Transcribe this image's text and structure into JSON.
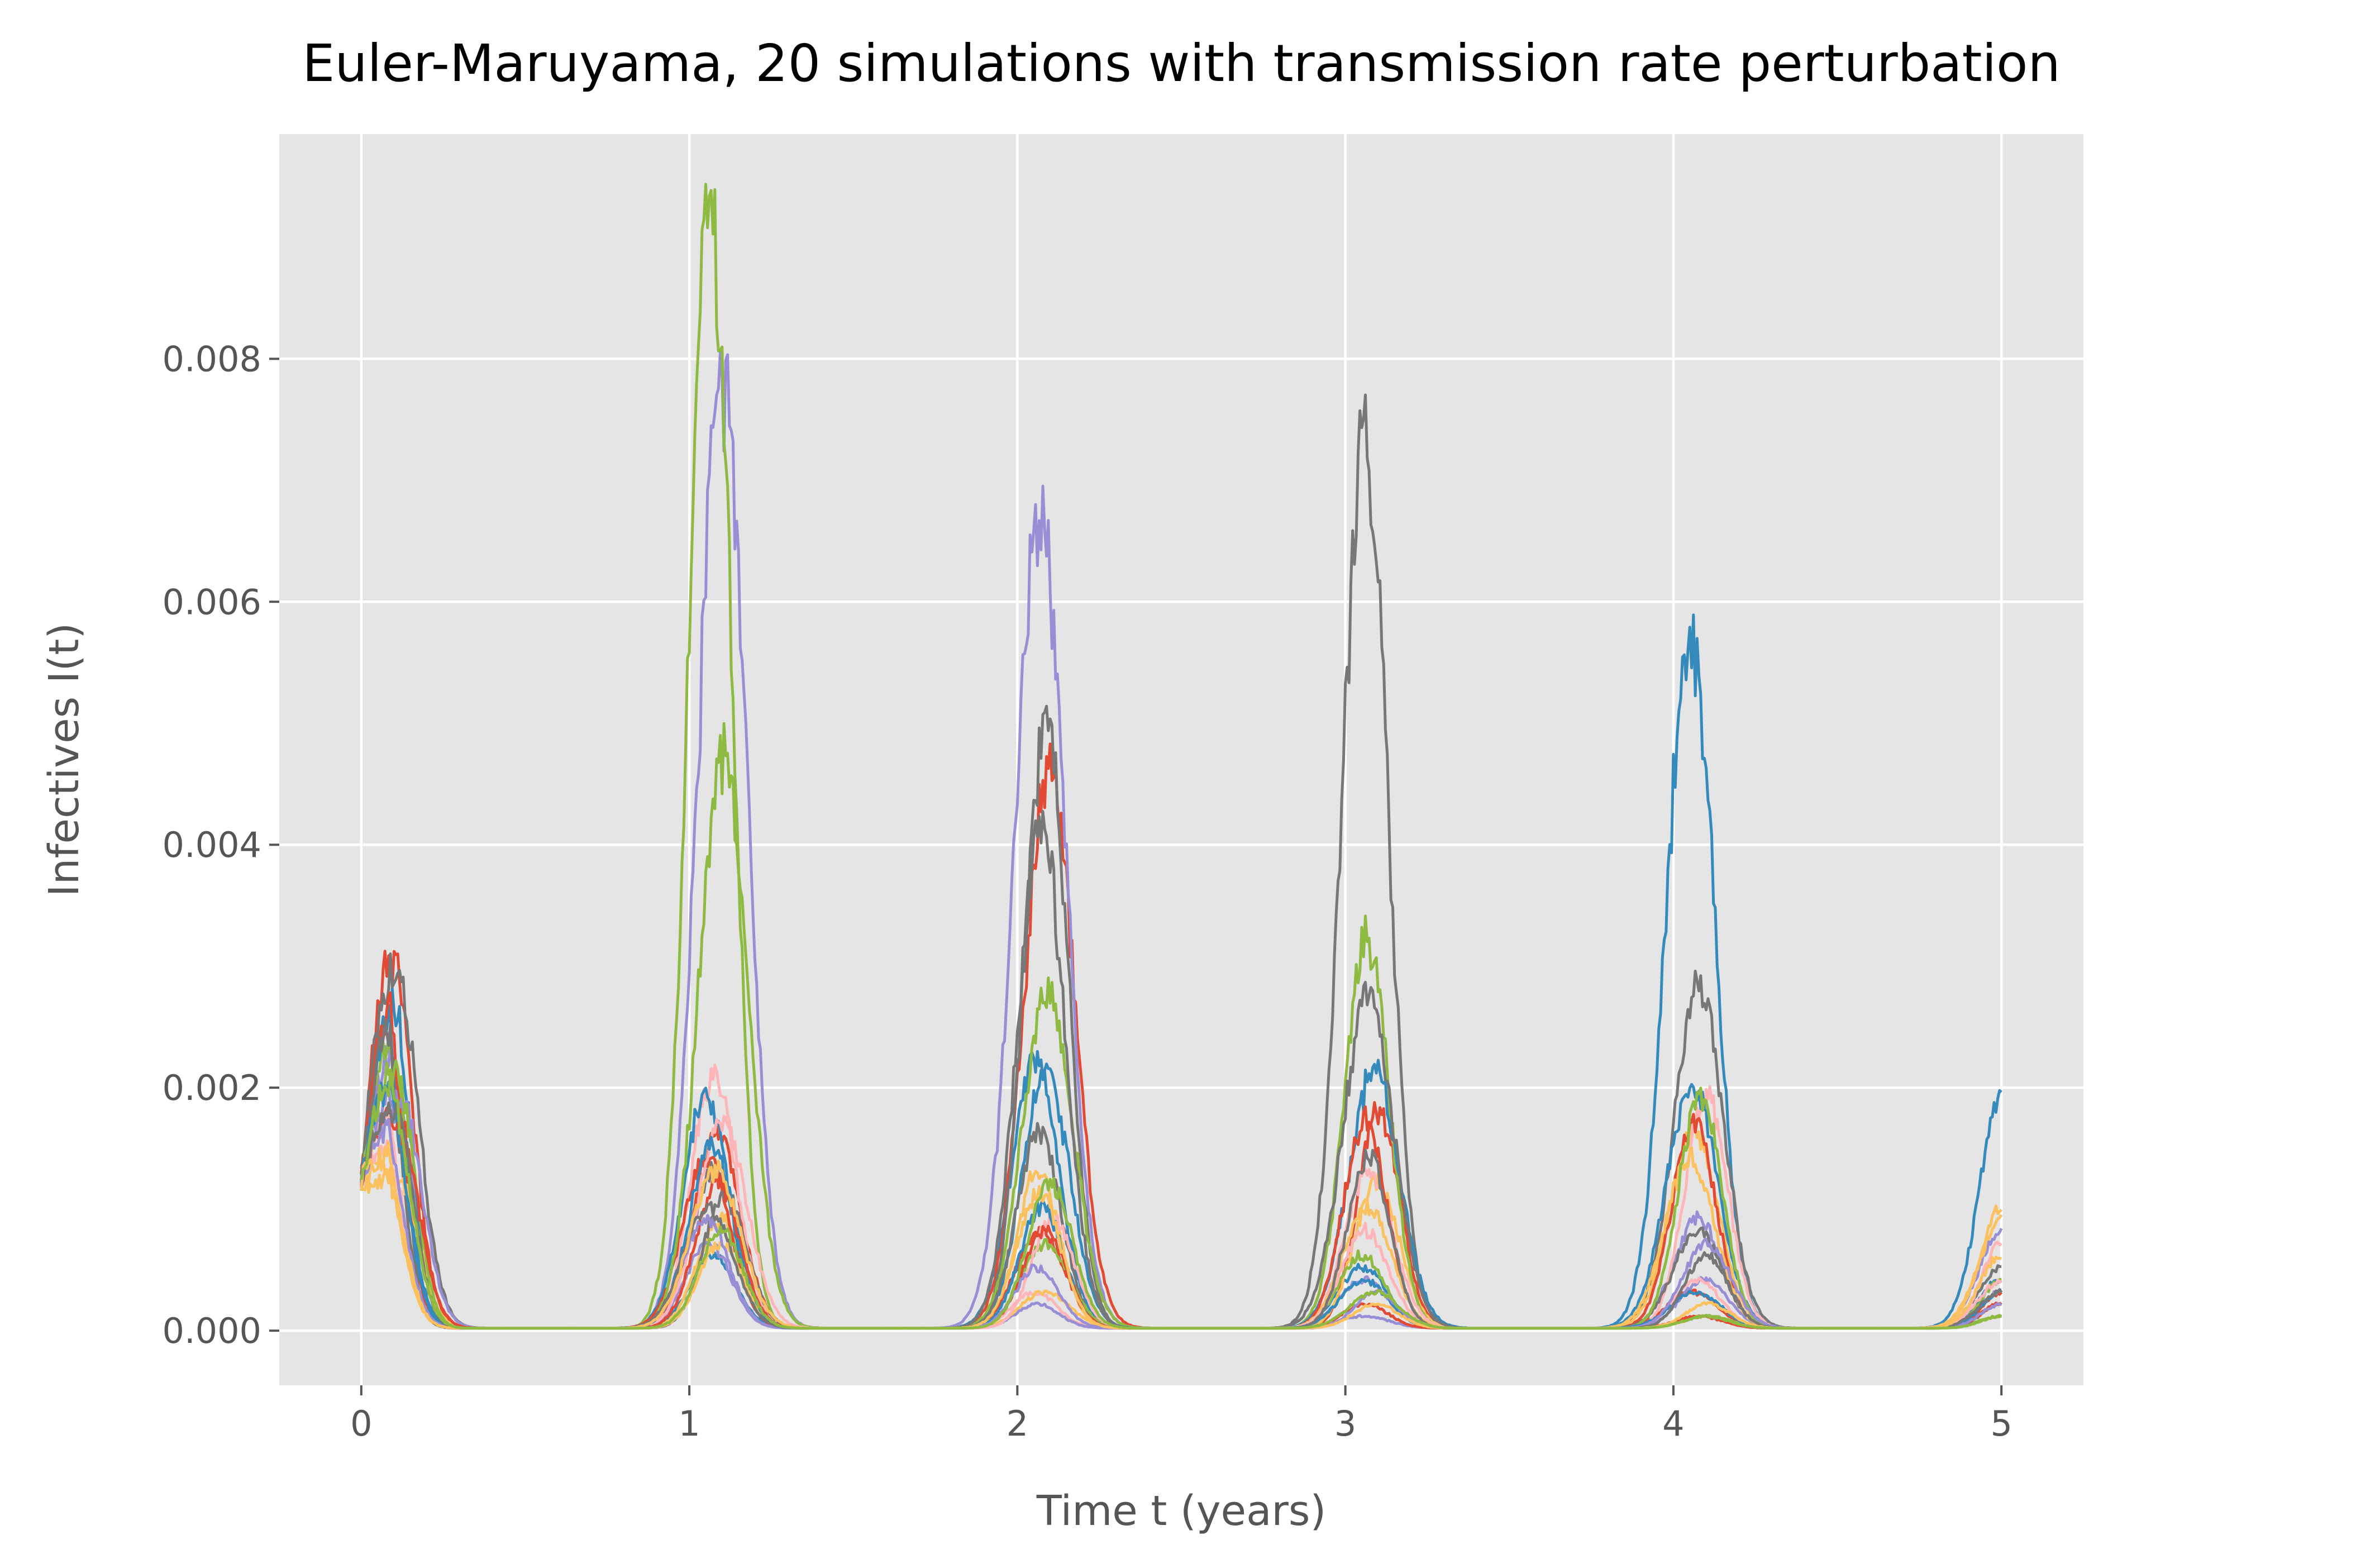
{
  "chart_data": {
    "type": "line",
    "title": "Euler-Maruyama, 20 simulations with transmission rate perturbation",
    "xlabel": "Time t (years)",
    "ylabel": "Infectives I(t)",
    "xlim": [
      -0.25,
      5.25
    ],
    "ylim": [
      -0.00045,
      0.00985
    ],
    "xticks": [
      0,
      1,
      2,
      3,
      4,
      5
    ],
    "xtick_labels": [
      "0",
      "1",
      "2",
      "3",
      "4",
      "5"
    ],
    "yticks": [
      0.0,
      0.002,
      0.004,
      0.006,
      0.008
    ],
    "ytick_labels": [
      "0.000",
      "0.002",
      "0.004",
      "0.006",
      "0.008"
    ],
    "grid": true,
    "style": "ggplot",
    "colors": [
      "#E24A33",
      "#348ABD",
      "#988ED5",
      "#777777",
      "#FBC15E",
      "#8EBA42",
      "#FFB5B8"
    ],
    "start_value": 0.0012,
    "series": [
      {
        "color": "#348ABD",
        "peaks": [
          0.0027,
          0.0006,
          0.0022,
          0.0005,
          0.0057,
          0.0019
        ]
      },
      {
        "color": "#E24A33",
        "peaks": [
          0.003,
          0.0016,
          0.0046,
          0.0018,
          0.0003,
          0.0003
        ]
      },
      {
        "color": "#988ED5",
        "peaks": [
          0.0022,
          0.0078,
          0.0066,
          0.0004,
          0.0009,
          0.0008
        ]
      },
      {
        "color": "#777777",
        "peaks": [
          0.0029,
          0.0013,
          0.005,
          0.0072,
          0.0028,
          0.0005
        ]
      },
      {
        "color": "#FBC15E",
        "peaks": [
          0.0013,
          0.0009,
          0.0013,
          0.0012,
          0.0016,
          0.001
        ]
      },
      {
        "color": "#8EBA42",
        "peaks": [
          0.0023,
          0.0092,
          0.0028,
          0.0032,
          0.0001,
          0.0001
        ]
      },
      {
        "color": "#FFB5B8",
        "peaks": [
          0.0017,
          0.0021,
          0.0003,
          0.0013,
          0.0019,
          0.0007
        ]
      },
      {
        "color": "#348ABD",
        "peaks": [
          0.0025,
          0.0019,
          0.0021,
          0.0021,
          0.002,
          0.0004
        ]
      },
      {
        "color": "#E24A33",
        "peaks": [
          0.0026,
          0.0014,
          0.0008,
          0.0017,
          0.0017,
          0.0002
        ]
      },
      {
        "color": "#988ED5",
        "peaks": [
          0.0019,
          0.0007,
          0.0002,
          0.0001,
          0.0004,
          0.0003
        ]
      },
      {
        "color": "#777777",
        "peaks": [
          0.0024,
          0.0011,
          0.0016,
          0.0027,
          0.0008,
          0.0002
        ]
      },
      {
        "color": "#FBC15E",
        "peaks": [
          0.0012,
          0.0007,
          0.0003,
          0.001,
          0.0014,
          0.0009
        ]
      },
      {
        "color": "#8EBA42",
        "peaks": [
          0.0021,
          0.0047,
          0.0007,
          0.0006,
          0.0019,
          0.0004
        ]
      },
      {
        "color": "#FFB5B8",
        "peaks": [
          0.0015,
          0.0017,
          0.0009,
          0.0008,
          0.0004,
          0.0004
        ]
      },
      {
        "color": "#348ABD",
        "peaks": [
          0.002,
          0.0015,
          0.001,
          0.0004,
          0.0003,
          0.0003
        ]
      },
      {
        "color": "#E24A33",
        "peaks": [
          0.0017,
          0.0012,
          0.0008,
          0.0002,
          0.0001,
          0.0002
        ]
      },
      {
        "color": "#988ED5",
        "peaks": [
          0.0016,
          0.0009,
          0.0005,
          0.0003,
          0.0007,
          0.0002
        ]
      },
      {
        "color": "#777777",
        "peaks": [
          0.0018,
          0.001,
          0.0041,
          0.0014,
          0.0006,
          0.0003
        ]
      },
      {
        "color": "#FBC15E",
        "peaks": [
          0.0014,
          0.0013,
          0.0011,
          0.0002,
          0.0002,
          0.0006
        ]
      },
      {
        "color": "#8EBA42",
        "peaks": [
          0.002,
          0.0008,
          0.0012,
          0.0003,
          0.0001,
          0.0001
        ]
      }
    ]
  }
}
